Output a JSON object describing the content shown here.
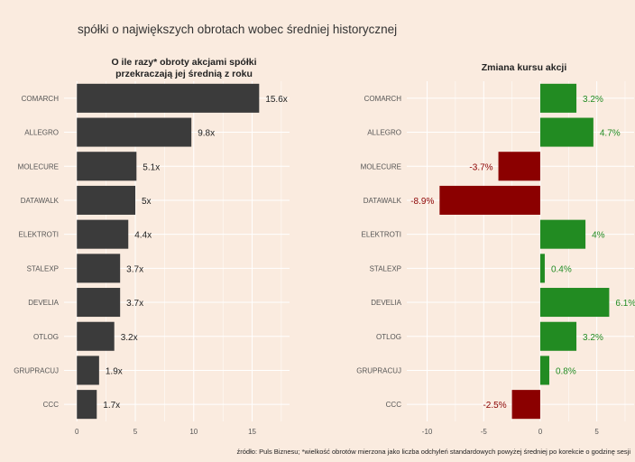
{
  "title": "spółki o największych obrotach wobec średniej historycznej",
  "caption": "źródło: Puls Biznesu; *wielkość obrotów mierzona jako liczba odchyleń standardowych powyżej średniej po korekcie o godzinę sesji",
  "colors": {
    "background": "#faebdf",
    "grid": "#ffffff",
    "bar_left": "#3b3b3b",
    "positive": "#228b22",
    "negative": "#8b0000",
    "text": "#333333",
    "axis_text": "#555555"
  },
  "chart_data": [
    {
      "type": "bar",
      "orientation": "horizontal",
      "title_lines": [
        "O ile razy* obroty akcjami spółki",
        "przekraczają jej średnią z roku"
      ],
      "categories": [
        "COMARCH",
        "ALLEGRO",
        "MOLECURE",
        "DATAWALK",
        "ELEKTROTI",
        "STALEXP",
        "DEVELIA",
        "OTLOG",
        "GRUPRACUJ",
        "CCC"
      ],
      "values": [
        15.6,
        9.8,
        5.1,
        5.0,
        4.4,
        3.7,
        3.7,
        3.2,
        1.9,
        1.7
      ],
      "labels": [
        "15.6x",
        "9.8x",
        "5.1x",
        "5x",
        "4.4x",
        "3.7x",
        "3.7x",
        "3.2x",
        "1.9x",
        "1.7x"
      ],
      "xlim": [
        -1.1,
        18.2
      ],
      "xticks": [
        0,
        5,
        10,
        15
      ],
      "grid": true
    },
    {
      "type": "bar",
      "orientation": "horizontal",
      "title": "Zmiana kursu akcji",
      "categories": [
        "COMARCH",
        "ALLEGRO",
        "MOLECURE",
        "DATAWALK",
        "ELEKTROTI",
        "STALEXP",
        "DEVELIA",
        "OTLOG",
        "GRUPRACUJ",
        "CCC"
      ],
      "values": [
        3.2,
        4.7,
        -3.7,
        -8.9,
        4.0,
        0.4,
        6.1,
        3.2,
        0.8,
        -2.5
      ],
      "labels": [
        "3.2%",
        "4.7%",
        "-3.7%",
        "-8.9%",
        "4%",
        "0.4%",
        "6.1%",
        "3.2%",
        "0.8%",
        "-2.5%"
      ],
      "xlim": [
        -11.8,
        8.3
      ],
      "xticks": [
        -10,
        -5,
        0,
        5
      ],
      "grid": true
    }
  ]
}
